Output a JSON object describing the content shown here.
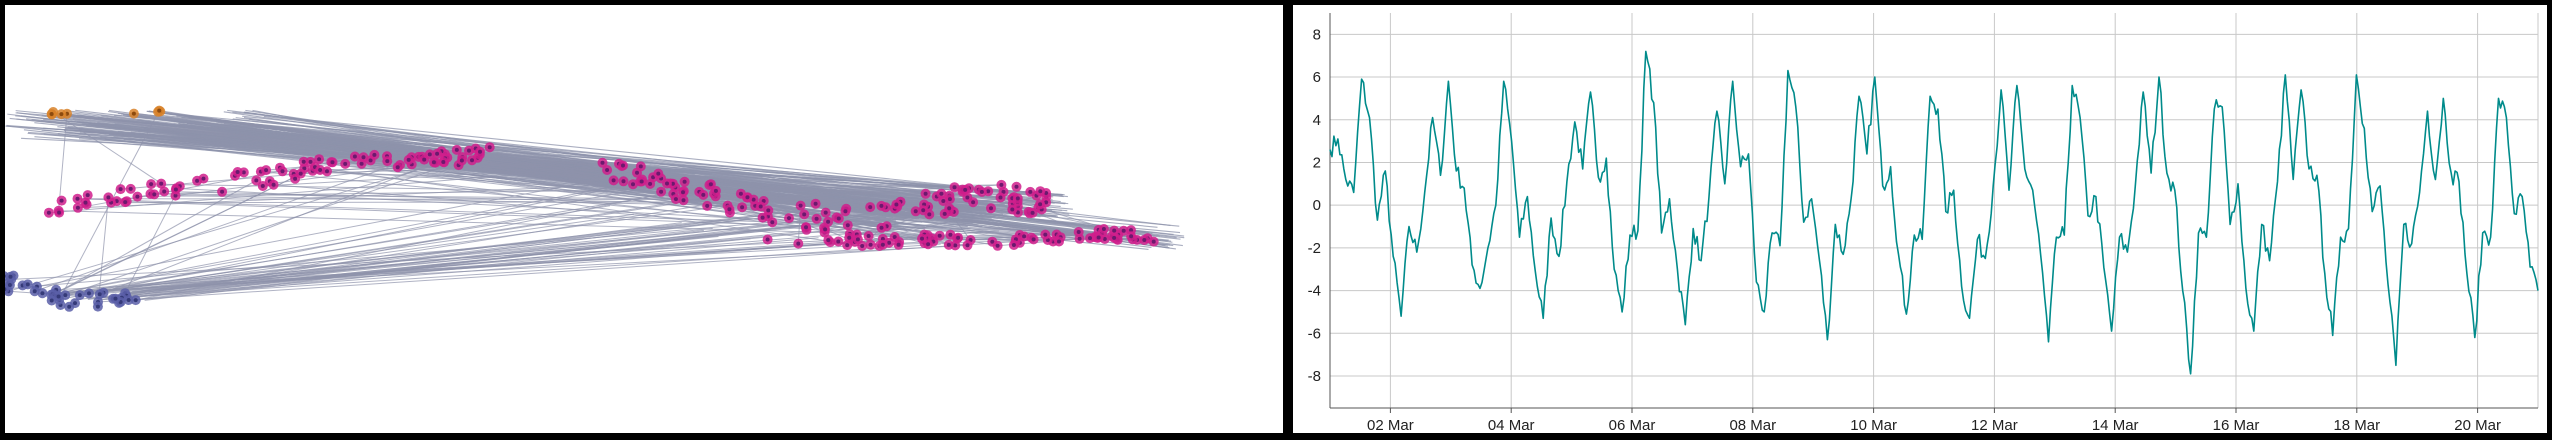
{
  "network": {
    "colors": {
      "edge": "#8e93ab",
      "node_magenta": "#d01f8c",
      "node_magenta_core": "#6b1a6e",
      "node_blue": "#5a5fa8",
      "node_blue_core": "#353a78",
      "node_orange": "#d8822a"
    },
    "clusters": [
      {
        "name": "magenta-upper-left",
        "color": "magenta"
      },
      {
        "name": "magenta-center",
        "color": "magenta"
      },
      {
        "name": "magenta-right-tail",
        "color": "magenta"
      },
      {
        "name": "blue-lower-left",
        "color": "blue"
      },
      {
        "name": "orange-top-left",
        "color": "orange"
      }
    ]
  },
  "chart_data": {
    "type": "line",
    "title": "",
    "xlabel": "",
    "ylabel": "",
    "x_ticks": [
      "02 Mar",
      "04 Mar",
      "06 Mar",
      "08 Mar",
      "10 Mar",
      "12 Mar",
      "14 Mar",
      "16 Mar",
      "18 Mar",
      "20 Mar"
    ],
    "y_ticks": [
      "8",
      "6",
      "4",
      "2",
      "0",
      "-2",
      "-4",
      "-6",
      "-8"
    ],
    "ylim": [
      -9.5,
      9
    ],
    "xlim": [
      "2024-03-01",
      "2024-03-21"
    ],
    "grid": true,
    "line_color": "#008b8b",
    "series": [
      {
        "x_start": "2024-03-01",
        "x_end": "2024-03-21",
        "values": [
          2.6,
          3.1,
          1.2,
          0.6,
          5.9,
          4.1,
          -0.7,
          1.6,
          -2.4,
          -5.2,
          -1.0,
          -2.2,
          0.6,
          4.1,
          1.4,
          5.8,
          1.6,
          0.8,
          -2.8,
          -3.9,
          -2.0,
          0.0,
          5.8,
          3.0,
          -1.5,
          0.4,
          -3.1,
          -5.3,
          -0.6,
          -2.4,
          1.1,
          3.9,
          1.7,
          5.3,
          1.3,
          2.2,
          -3.0,
          -5.0,
          -1.4,
          -1.2,
          7.2,
          4.8,
          -1.3,
          0.3,
          -3.0,
          -5.6,
          -1.1,
          -2.6,
          0.4,
          4.4,
          1.0,
          5.8,
          1.8,
          2.4,
          -3.6,
          -5.0,
          -1.3,
          -1.9,
          6.3,
          4.6,
          -0.8,
          0.3,
          -2.6,
          -6.3,
          -0.9,
          -2.3,
          0.3,
          5.1,
          2.4,
          6.0,
          0.9,
          1.8,
          -2.3,
          -5.1,
          -1.4,
          -1.6,
          5.1,
          4.5,
          -0.3,
          0.7,
          -3.8,
          -5.3,
          -1.6,
          -2.5,
          0.9,
          5.4,
          0.7,
          5.6,
          1.7,
          0.7,
          -2.3,
          -6.4,
          -1.5,
          -1.4,
          5.6,
          4.1,
          -0.5,
          0.4,
          -2.9,
          -5.9,
          -1.5,
          -2.2,
          0.9,
          5.3,
          1.5,
          6.0,
          1.5,
          0.7,
          -4.0,
          -7.9,
          -1.3,
          -1.5,
          4.5,
          4.6,
          -0.9,
          1.0,
          -3.9,
          -5.9,
          -0.9,
          -2.6,
          1.1,
          6.1,
          1.2,
          5.4,
          1.7,
          1.4,
          -3.2,
          -6.1,
          -1.5,
          -1.1,
          6.1,
          3.6,
          -0.3,
          0.9,
          -3.7,
          -7.5,
          -0.9,
          -1.8,
          0.6,
          4.4,
          1.2,
          5.0,
          1.5,
          1.1,
          -3.2,
          -6.2,
          -1.3,
          -1.5,
          5.0,
          4.1,
          -0.4,
          0.4,
          -2.9,
          -4.0
        ]
      }
    ]
  }
}
